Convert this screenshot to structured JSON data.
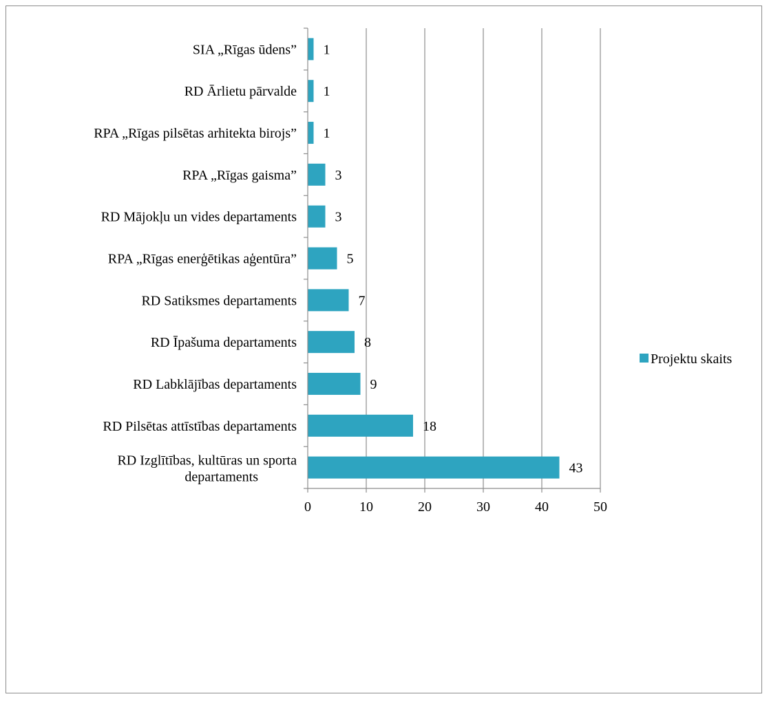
{
  "chart_data": {
    "type": "bar",
    "orientation": "horizontal",
    "categories": [
      "RD Izglītības, kultūras un sporta departaments",
      "RD Pilsētas attīstības departaments",
      "RD Labklājības departaments",
      "RD Īpašuma departaments",
      "RD Satiksmes departaments",
      "RPA „Rīgas enerģētikas aģentūra”",
      "RD Mājokļu un vides departaments",
      "RPA „Rīgas gaisma”",
      "RPA „Rīgas pilsētas arhitekta birojs”",
      "RD Ārlietu pārvalde",
      "SIA „Rīgas ūdens”"
    ],
    "series": [
      {
        "name": "Projektu skaits",
        "values": [
          43,
          18,
          9,
          8,
          7,
          5,
          3,
          3,
          1,
          1,
          1
        ],
        "color": "#2ea4c0"
      }
    ],
    "data_labels": [
      "43",
      "18",
      "9",
      "8",
      "7",
      "5",
      "3",
      "3",
      "1",
      "1",
      "1"
    ],
    "xlim": [
      0,
      50
    ],
    "x_ticks": [
      "0",
      "10",
      "20",
      "30",
      "40",
      "50"
    ],
    "grid": "vertical",
    "legend_position": "right",
    "title": "",
    "xlabel": "",
    "ylabel": ""
  }
}
